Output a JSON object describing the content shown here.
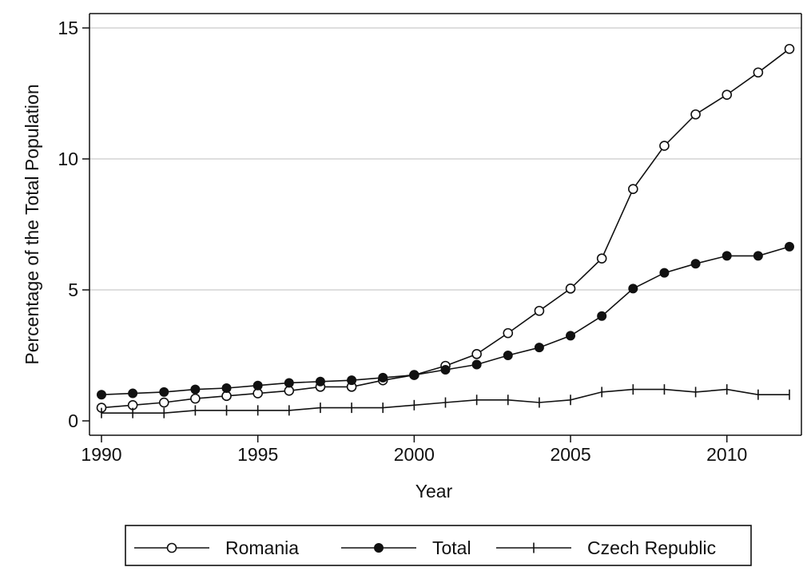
{
  "chart_data": {
    "type": "line",
    "title": "",
    "xlabel": "Year",
    "ylabel": "Percentage of the Total Population",
    "xlim": [
      1990,
      2012
    ],
    "ylim": [
      0,
      15
    ],
    "x_ticks": [
      1990,
      1995,
      2000,
      2005,
      2010
    ],
    "x_tick_labels": [
      "1990",
      "1995",
      "2000",
      "2005",
      "2010"
    ],
    "y_ticks": [
      0,
      5,
      10,
      15
    ],
    "y_tick_labels": [
      "0",
      "5",
      "10",
      "15"
    ],
    "grid": "horizontal",
    "legend_position": "bottom",
    "x": [
      1990,
      1991,
      1992,
      1993,
      1994,
      1995,
      1996,
      1997,
      1998,
      1999,
      2000,
      2001,
      2002,
      2003,
      2004,
      2005,
      2006,
      2007,
      2008,
      2009,
      2010,
      2011,
      2012
    ],
    "series": [
      {
        "name": "Romania",
        "marker": "hollow-circle",
        "values": [
          0.5,
          0.6,
          0.7,
          0.85,
          0.95,
          1.05,
          1.15,
          1.3,
          1.3,
          1.55,
          1.75,
          2.1,
          2.55,
          3.35,
          4.2,
          5.05,
          6.2,
          8.85,
          10.5,
          11.7,
          12.45,
          13.3,
          14.2
        ]
      },
      {
        "name": "Total",
        "marker": "filled-circle",
        "values": [
          1.0,
          1.05,
          1.1,
          1.2,
          1.25,
          1.35,
          1.45,
          1.5,
          1.55,
          1.65,
          1.75,
          1.95,
          2.15,
          2.5,
          2.8,
          3.25,
          4.0,
          5.05,
          5.65,
          6.0,
          6.3,
          6.3,
          6.65
        ]
      },
      {
        "name": "Czech Republic",
        "marker": "plus",
        "values": [
          0.3,
          0.3,
          0.3,
          0.4,
          0.4,
          0.4,
          0.4,
          0.5,
          0.5,
          0.5,
          0.6,
          0.7,
          0.8,
          0.8,
          0.7,
          0.8,
          1.1,
          1.2,
          1.2,
          1.1,
          1.2,
          1.0,
          1.0
        ]
      }
    ]
  }
}
